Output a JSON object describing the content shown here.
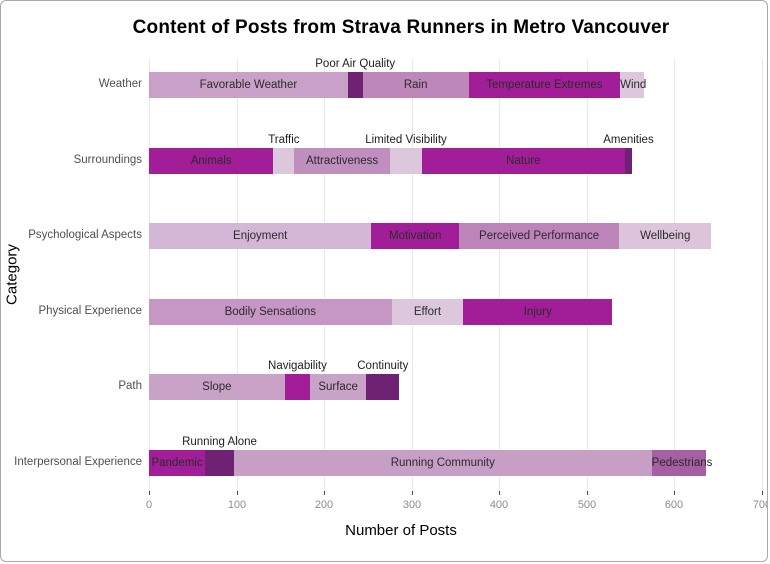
{
  "figure": {
    "title": "Content of Posts from Strava Runners in Metro Vancouver",
    "x_axis_title": "Number of Posts",
    "y_axis_title": "Category"
  },
  "style": {
    "background": "#ffffff",
    "grid_color": "#e8e8e8",
    "tick_color": "#4d4d4d",
    "tick_label_color": "#8c8c8c",
    "category_label_color": "#4f4f4f",
    "bar_label_color": "#2b2b2b",
    "title_color": "#000000"
  },
  "chart_data": {
    "type": "bar",
    "stacked": true,
    "orientation": "horizontal",
    "title": "Content of Posts from Strava Runners in Metro Vancouver",
    "xlabel": "Number of Posts",
    "ylabel": "Category",
    "xlim": [
      0,
      700
    ],
    "xticks": [
      0,
      100,
      200,
      300,
      400,
      500,
      600,
      700
    ],
    "grid": true,
    "legend": false,
    "categories": [
      "Weather",
      "Surroundings",
      "Psychological Aspects",
      "Physical Experience",
      "Path",
      "Interpersonal Experience"
    ],
    "rows": [
      {
        "category": "Weather",
        "total": 565,
        "segments": [
          {
            "label": "Favorable Weather",
            "value": 227,
            "color": "#c9a1c8",
            "label_pos": "inside"
          },
          {
            "label": "Poor Air Quality",
            "value": 17,
            "color": "#6f2173",
            "label_pos": "above"
          },
          {
            "label": "Rain",
            "value": 121,
            "color": "#bd87ba",
            "label_pos": "inside"
          },
          {
            "label": "Temperature Extremes",
            "value": 173,
            "color": "#a11e98",
            "label_pos": "inside"
          },
          {
            "label": "Wind",
            "value": 27,
            "color": "#ddc7dd",
            "label_pos": "inside"
          }
        ]
      },
      {
        "category": "Surroundings",
        "total": 552,
        "segments": [
          {
            "label": "Animals",
            "value": 142,
            "color": "#a11e98",
            "label_pos": "inside"
          },
          {
            "label": "Traffic",
            "value": 24,
            "color": "#ddc7dd",
            "label_pos": "above"
          },
          {
            "label": "Attractiveness",
            "value": 109,
            "color": "#c08fbf",
            "label_pos": "inside"
          },
          {
            "label": "Limited Visibility",
            "value": 37,
            "color": "#ddc7dd",
            "label_pos": "above"
          },
          {
            "label": "Nature",
            "value": 231,
            "color": "#a11e98",
            "label_pos": "inside"
          },
          {
            "label": "Amenities",
            "value": 9,
            "color": "#6f2173",
            "label_pos": "above"
          }
        ]
      },
      {
        "category": "Psychological Aspects",
        "total": 642,
        "segments": [
          {
            "label": "Enjoyment",
            "value": 254,
            "color": "#d4b6d6",
            "label_pos": "inside"
          },
          {
            "label": "Motivation",
            "value": 100,
            "color": "#a11e98",
            "label_pos": "inside"
          },
          {
            "label": "Perceived Performance",
            "value": 183,
            "color": "#bd84b9",
            "label_pos": "inside"
          },
          {
            "label": "Wellbeing",
            "value": 105,
            "color": "#dcc5db",
            "label_pos": "inside"
          }
        ]
      },
      {
        "category": "Physical Experience",
        "total": 529,
        "segments": [
          {
            "label": "Bodily Sensations",
            "value": 277,
            "color": "#c697c4",
            "label_pos": "inside"
          },
          {
            "label": "Effort",
            "value": 82,
            "color": "#ddc7dd",
            "label_pos": "inside"
          },
          {
            "label": "Injury",
            "value": 170,
            "color": "#a11e98",
            "label_pos": "inside"
          }
        ]
      },
      {
        "category": "Path",
        "total": 286,
        "segments": [
          {
            "label": "Slope",
            "value": 155,
            "color": "#c9a2c8",
            "label_pos": "inside"
          },
          {
            "label": "Navigability",
            "value": 29,
            "color": "#a11e98",
            "label_pos": "above"
          },
          {
            "label": "Surface",
            "value": 64,
            "color": "#c9a2c8",
            "label_pos": "inside"
          },
          {
            "label": "Continuity",
            "value": 38,
            "color": "#6f2173",
            "label_pos": "above"
          }
        ]
      },
      {
        "category": "Interpersonal Experience",
        "total": 636,
        "segments": [
          {
            "label": "Pandemic",
            "value": 64,
            "color": "#a11e98",
            "label_pos": "inside"
          },
          {
            "label": "Running Alone",
            "value": 33,
            "color": "#6f2173",
            "label_pos": "above"
          },
          {
            "label": "Running Community",
            "value": 477,
            "color": "#c79fc6",
            "label_pos": "inside"
          },
          {
            "label": "Pedestrians",
            "value": 62,
            "color": "#a55fa2",
            "label_pos": "inside"
          }
        ]
      }
    ]
  }
}
